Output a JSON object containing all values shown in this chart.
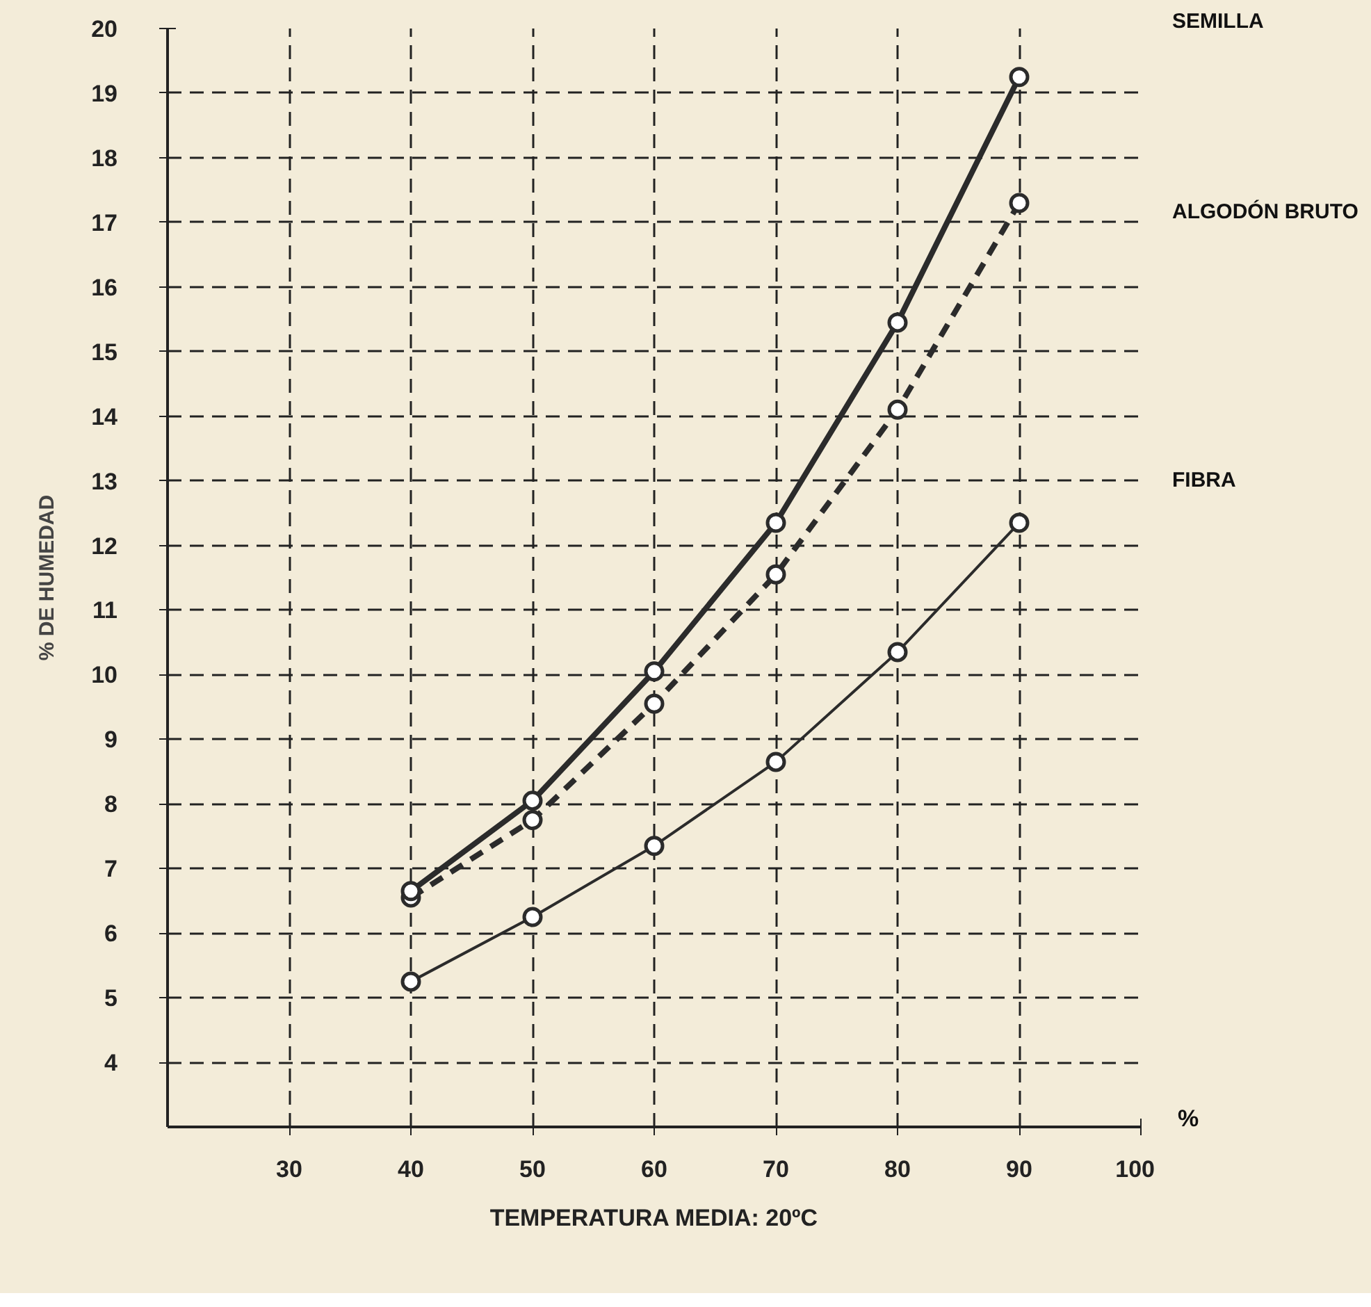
{
  "chart_data": {
    "type": "line",
    "xlabel": "%",
    "ylabel": "% DE HUMEDAD",
    "annotations": [
      "TEMPERATURA MEDIA: 20ºC"
    ],
    "x": [
      40,
      50,
      60,
      70,
      80,
      90
    ],
    "series": [
      {
        "name": "SEMILLA",
        "color": "#2b2b2b",
        "line_style": "solid",
        "values": [
          6.65,
          8.05,
          10.05,
          12.35,
          15.45,
          19.25
        ]
      },
      {
        "name": "ALGODÓN BRUTO",
        "color": "#2b2b2b",
        "line_style": "dashed",
        "values": [
          6.55,
          7.75,
          9.55,
          11.55,
          14.1,
          17.3
        ]
      },
      {
        "name": "FIBRA",
        "color": "#2b2b2b",
        "line_style": "solid",
        "values": [
          5.25,
          6.25,
          7.35,
          8.65,
          10.35,
          12.35
        ]
      }
    ],
    "marker": "circle",
    "grid": true,
    "xlim": [
      20,
      100
    ],
    "ylim": [
      3,
      20
    ],
    "xticks": [
      30,
      40,
      50,
      60,
      70,
      80,
      90,
      100
    ],
    "yticks": [
      4,
      5,
      6,
      7,
      8,
      9,
      10,
      11,
      12,
      13,
      14,
      15,
      16,
      17,
      18,
      19,
      20
    ]
  }
}
